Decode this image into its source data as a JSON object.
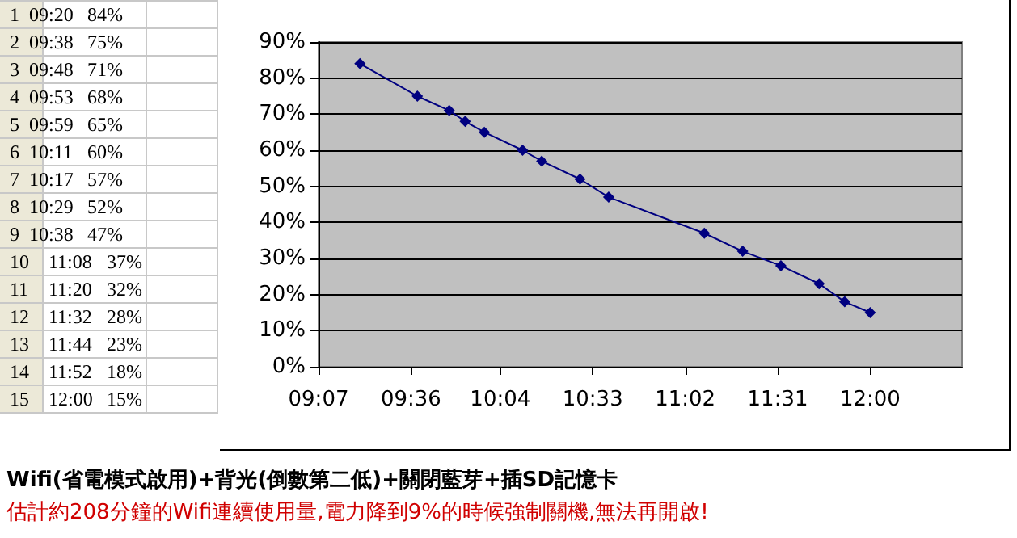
{
  "chart_data": [
    {
      "type": "other",
      "annotations": [
        "1\t09:20\t84%",
        "2\t09:38\t75%",
        "3\t09:48\t71%",
        "4\t09:53\t68%",
        "5\t09:59\t65%",
        "6\t10:11\t60%",
        "7\t10:17\t57%",
        "8\t10:29\t52%",
        "9\t10:38\t47%",
        "10\t11:08\t37%",
        "11\t11:20\t32%",
        "12\t11:32\t28%",
        "13\t11:44\t23%",
        "14\t11:52\t18%",
        "15\t12:00\t15%"
      ]
    },
    {
      "type": "line",
      "x": [
        9.3333,
        9.6333,
        9.8,
        9.8833,
        9.9833,
        10.1833,
        10.2833,
        10.4833,
        10.6333,
        11.1333,
        11.3333,
        11.5333,
        11.7333,
        11.8667,
        12.0
      ],
      "series": [
        {
          "color": "#000080",
          "values": [
            84,
            75,
            71,
            68,
            65,
            60,
            57,
            52,
            47,
            37,
            32,
            28,
            23,
            18,
            15
          ]
        }
      ],
      "xlim": [
        9.1167,
        12.48
      ],
      "xticks": [
        {
          "value": 9.1167,
          "label": "09:07"
        },
        {
          "value": 9.6,
          "label": "09:36"
        },
        {
          "value": 10.0667,
          "label": "10:04"
        },
        {
          "value": 10.55,
          "label": "10:33"
        },
        {
          "value": 11.0333,
          "label": "11:02"
        },
        {
          "value": 11.5167,
          "label": "11:31"
        },
        {
          "value": 12.0,
          "label": "12:00"
        }
      ],
      "ylim": [
        0,
        90
      ],
      "yticks": [
        {
          "value": 0,
          "label": "0%"
        },
        {
          "value": 10,
          "label": "10%"
        },
        {
          "value": 20,
          "label": "20%"
        },
        {
          "value": 30,
          "label": "30%"
        },
        {
          "value": 40,
          "label": "40%"
        },
        {
          "value": 50,
          "label": "50%"
        },
        {
          "value": 60,
          "label": "60%"
        },
        {
          "value": 70,
          "label": "70%"
        },
        {
          "value": 80,
          "label": "80%"
        },
        {
          "value": 90,
          "label": "90%"
        }
      ],
      "grid": "y",
      "marker": "diamond",
      "line_style": "solid",
      "annotations": [
        "Wifi(省電模式啟用)+背光(倒數第二低)+關閉藍芽+插SD記憶卡",
        "估計約208分鐘的Wifi連續使用量,電力降到9%的時候強制關機,無法再開啟!"
      ]
    }
  ]
}
